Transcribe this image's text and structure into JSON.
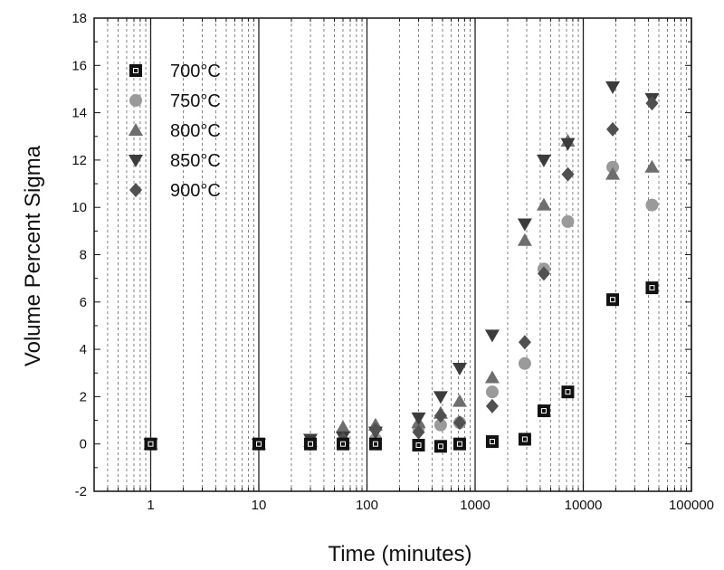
{
  "chart_data": {
    "type": "scatter",
    "title": "",
    "xlabel": "Time (minutes)",
    "ylabel": "Volume Percent Sigma",
    "xscale": "log",
    "xlim": [
      0.3,
      100000
    ],
    "ylim": [
      -2,
      18
    ],
    "x_ticks": [
      1,
      10,
      100,
      1000,
      10000,
      100000
    ],
    "x_tick_labels": [
      "1",
      "10",
      "100",
      "1000",
      "10000",
      "100000"
    ],
    "y_ticks": [
      -2,
      0,
      2,
      4,
      6,
      8,
      10,
      12,
      14,
      16,
      18
    ],
    "grid": "vertical dashed minor gridlines, solid lines at decades",
    "legend_position": "top-left",
    "series": [
      {
        "name": "700°C",
        "marker": "square",
        "color": "#111111",
        "points": [
          [
            1,
            0
          ],
          [
            10,
            0
          ],
          [
            30,
            0
          ],
          [
            60,
            0
          ],
          [
            120,
            0
          ],
          [
            300,
            -0.05
          ],
          [
            480,
            -0.1
          ],
          [
            720,
            0
          ],
          [
            1440,
            0.1
          ],
          [
            2880,
            0.2
          ],
          [
            4320,
            1.4
          ],
          [
            7200,
            2.2
          ],
          [
            18720,
            6.1
          ],
          [
            43200,
            6.6
          ]
        ]
      },
      {
        "name": "750°C",
        "marker": "circle",
        "color": "#9a9a9a",
        "points": [
          [
            1,
            0
          ],
          [
            10,
            0
          ],
          [
            30,
            0
          ],
          [
            60,
            0.1
          ],
          [
            120,
            0.2
          ],
          [
            300,
            0.7
          ],
          [
            480,
            0.8
          ],
          [
            720,
            0.9
          ],
          [
            1440,
            2.2
          ],
          [
            2880,
            3.4
          ],
          [
            4320,
            7.4
          ],
          [
            7200,
            9.4
          ],
          [
            18720,
            11.7
          ],
          [
            43200,
            10.1
          ]
        ]
      },
      {
        "name": "800°C",
        "marker": "triangle-up",
        "color": "#6e6e6e",
        "points": [
          [
            1,
            0
          ],
          [
            10,
            0
          ],
          [
            30,
            0.1
          ],
          [
            60,
            0.7
          ],
          [
            120,
            0.8
          ],
          [
            300,
            0.9
          ],
          [
            480,
            1.3
          ],
          [
            720,
            1.8
          ],
          [
            1440,
            2.8
          ],
          [
            2880,
            8.6
          ],
          [
            4320,
            10.1
          ],
          [
            7200,
            12.8
          ],
          [
            18720,
            11.4
          ],
          [
            43200,
            11.7
          ]
        ]
      },
      {
        "name": "850°C",
        "marker": "triangle-down",
        "color": "#3c3c3c",
        "points": [
          [
            1,
            0
          ],
          [
            10,
            0
          ],
          [
            30,
            0.2
          ],
          [
            60,
            0.3
          ],
          [
            120,
            0.5
          ],
          [
            300,
            1.1
          ],
          [
            480,
            2.0
          ],
          [
            720,
            3.2
          ],
          [
            1440,
            4.6
          ],
          [
            2880,
            9.3
          ],
          [
            4320,
            12.0
          ],
          [
            7200,
            12.7
          ],
          [
            18720,
            15.1
          ],
          [
            43200,
            14.6
          ]
        ]
      },
      {
        "name": "900°C",
        "marker": "diamond",
        "color": "#505050",
        "points": [
          [
            1,
            0
          ],
          [
            10,
            0
          ],
          [
            30,
            0
          ],
          [
            60,
            0.2
          ],
          [
            120,
            0.6
          ],
          [
            300,
            0.5
          ],
          [
            480,
            1.2
          ],
          [
            720,
            0.9
          ],
          [
            1440,
            1.6
          ],
          [
            2880,
            4.3
          ],
          [
            4320,
            7.2
          ],
          [
            7200,
            11.4
          ],
          [
            18720,
            13.3
          ],
          [
            43200,
            14.4
          ]
        ]
      }
    ]
  }
}
